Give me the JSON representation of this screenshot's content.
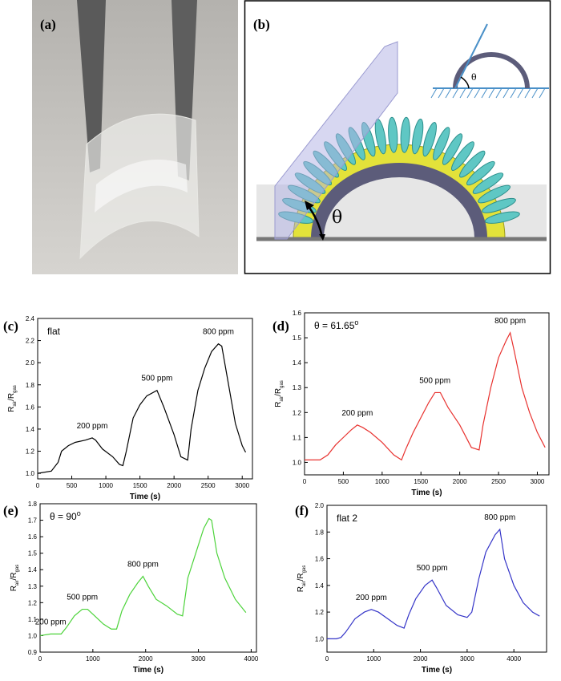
{
  "panels": {
    "a": "(a)",
    "b": "(b)",
    "theta_main": "θ",
    "theta_inset": "θ"
  },
  "chart_data": [
    {
      "type": "line",
      "panel": "(c)",
      "label_parts": [
        "flat"
      ],
      "xlabel": "Time (s)",
      "ylabel_parts": [
        "R",
        "air",
        "/R",
        "gas"
      ],
      "annotations": [
        "200 ppm",
        "500 ppm",
        "800 ppm"
      ],
      "x": [
        0,
        200,
        300,
        350,
        450,
        550,
        700,
        800,
        850,
        950,
        1100,
        1200,
        1250,
        1300,
        1400,
        1500,
        1600,
        1750,
        1850,
        2000,
        2100,
        2200,
        2250,
        2350,
        2450,
        2550,
        2650,
        2700,
        2800,
        2900,
        3000,
        3050
      ],
      "series": [
        {
          "color": "#000000",
          "values": [
            1.0,
            1.02,
            1.1,
            1.2,
            1.25,
            1.28,
            1.3,
            1.32,
            1.3,
            1.22,
            1.15,
            1.08,
            1.07,
            1.2,
            1.5,
            1.62,
            1.7,
            1.75,
            1.6,
            1.35,
            1.15,
            1.12,
            1.4,
            1.75,
            1.95,
            2.1,
            2.17,
            2.15,
            1.8,
            1.45,
            1.25,
            1.19
          ]
        }
      ],
      "xlim": [
        0,
        3150
      ],
      "xticks": [
        0,
        500,
        1000,
        1500,
        2000,
        2500,
        3000
      ],
      "ylim": [
        0.95,
        2.4
      ],
      "yticks": [
        {
          "value": 1.0,
          "label": "1.0"
        },
        1.2,
        1.4,
        1.6,
        1.8,
        {
          "value": 2.0,
          "label": "2.0"
        },
        2.2,
        2.4
      ]
    },
    {
      "type": "line",
      "panel": "(d)",
      "label_parts": [
        "θ = 61.65",
        "o"
      ],
      "xlabel": "Time (s)",
      "ylabel_parts": [
        "R",
        "air",
        "/R",
        "gas"
      ],
      "annotations": [
        "200 ppm",
        "500 ppm",
        "800 ppm"
      ],
      "x": [
        0,
        100,
        200,
        300,
        400,
        500,
        600,
        680,
        750,
        850,
        1000,
        1150,
        1250,
        1300,
        1400,
        1500,
        1600,
        1680,
        1750,
        1850,
        2000,
        2150,
        2250,
        2300,
        2400,
        2500,
        2600,
        2650,
        2700,
        2800,
        2900,
        3000,
        3100
      ],
      "series": [
        {
          "color": "#e8322f",
          "values": [
            1.01,
            1.01,
            1.01,
            1.03,
            1.07,
            1.1,
            1.13,
            1.15,
            1.14,
            1.12,
            1.08,
            1.03,
            1.01,
            1.05,
            1.12,
            1.18,
            1.24,
            1.28,
            1.28,
            1.22,
            1.15,
            1.06,
            1.05,
            1.15,
            1.3,
            1.42,
            1.49,
            1.52,
            1.45,
            1.3,
            1.2,
            1.12,
            1.06
          ]
        }
      ],
      "xlim": [
        0,
        3150
      ],
      "xticks": [
        0,
        500,
        1000,
        1500,
        2000,
        2500,
        3000
      ],
      "ylim": [
        0.95,
        1.6
      ],
      "yticks": [
        {
          "value": 1.0,
          "label": "1.0"
        },
        1.1,
        1.2,
        1.3,
        1.4,
        1.5,
        1.6
      ]
    },
    {
      "type": "line",
      "panel": "(e)",
      "label_parts": [
        "θ = 90",
        "o"
      ],
      "xlabel": "Time (s)",
      "ylabel_parts": [
        "R",
        "air",
        "/R",
        "gas"
      ],
      "annotations": [
        "200 ppm",
        "500 ppm",
        "800 ppm"
      ],
      "x": [
        0,
        200,
        400,
        500,
        650,
        800,
        900,
        1000,
        1200,
        1350,
        1450,
        1550,
        1700,
        1850,
        1950,
        2050,
        2200,
        2400,
        2600,
        2700,
        2800,
        2950,
        3100,
        3200,
        3250,
        3350,
        3500,
        3700,
        3900
      ],
      "series": [
        {
          "color": "#4cd33a",
          "values": [
            1.0,
            1.01,
            1.01,
            1.05,
            1.12,
            1.16,
            1.16,
            1.13,
            1.07,
            1.04,
            1.04,
            1.15,
            1.25,
            1.32,
            1.36,
            1.3,
            1.22,
            1.18,
            1.13,
            1.12,
            1.35,
            1.5,
            1.65,
            1.71,
            1.7,
            1.5,
            1.35,
            1.22,
            1.14
          ]
        }
      ],
      "xlim": [
        0,
        4100
      ],
      "xticks": [
        0,
        1000,
        2000,
        3000,
        4000
      ],
      "ylim": [
        0.9,
        1.8
      ],
      "yticks": [
        0.9,
        {
          "value": 1.0,
          "label": "1.0"
        },
        1.1,
        1.2,
        1.3,
        1.4,
        1.5,
        1.6,
        1.7,
        1.8
      ]
    },
    {
      "type": "line",
      "panel": "(f)",
      "label_parts": [
        "flat 2"
      ],
      "xlabel": "Time (s)",
      "ylabel_parts": [
        "R",
        "air",
        "/R",
        "gas"
      ],
      "annotations": [
        "200 ppm",
        "500 ppm",
        "800 ppm"
      ],
      "x": [
        0,
        200,
        300,
        400,
        600,
        800,
        950,
        1100,
        1300,
        1500,
        1650,
        1750,
        1900,
        2100,
        2250,
        2350,
        2550,
        2800,
        3000,
        3100,
        3250,
        3400,
        3600,
        3700,
        3800,
        4000,
        4200,
        4400,
        4550
      ],
      "series": [
        {
          "color": "#3535c8",
          "values": [
            1.0,
            1.0,
            1.01,
            1.05,
            1.15,
            1.2,
            1.22,
            1.2,
            1.15,
            1.1,
            1.08,
            1.18,
            1.3,
            1.4,
            1.44,
            1.38,
            1.25,
            1.18,
            1.16,
            1.2,
            1.45,
            1.65,
            1.78,
            1.82,
            1.6,
            1.4,
            1.27,
            1.2,
            1.17
          ]
        }
      ],
      "xlim": [
        0,
        4700
      ],
      "xticks": [
        0,
        1000,
        2000,
        3000,
        4000
      ],
      "ylim": [
        0.9,
        2.0
      ],
      "yticks": [
        {
          "value": 1.0,
          "label": "1.0"
        },
        1.2,
        1.4,
        1.6,
        1.8,
        {
          "value": 2.0,
          "label": "2.0"
        }
      ]
    }
  ]
}
